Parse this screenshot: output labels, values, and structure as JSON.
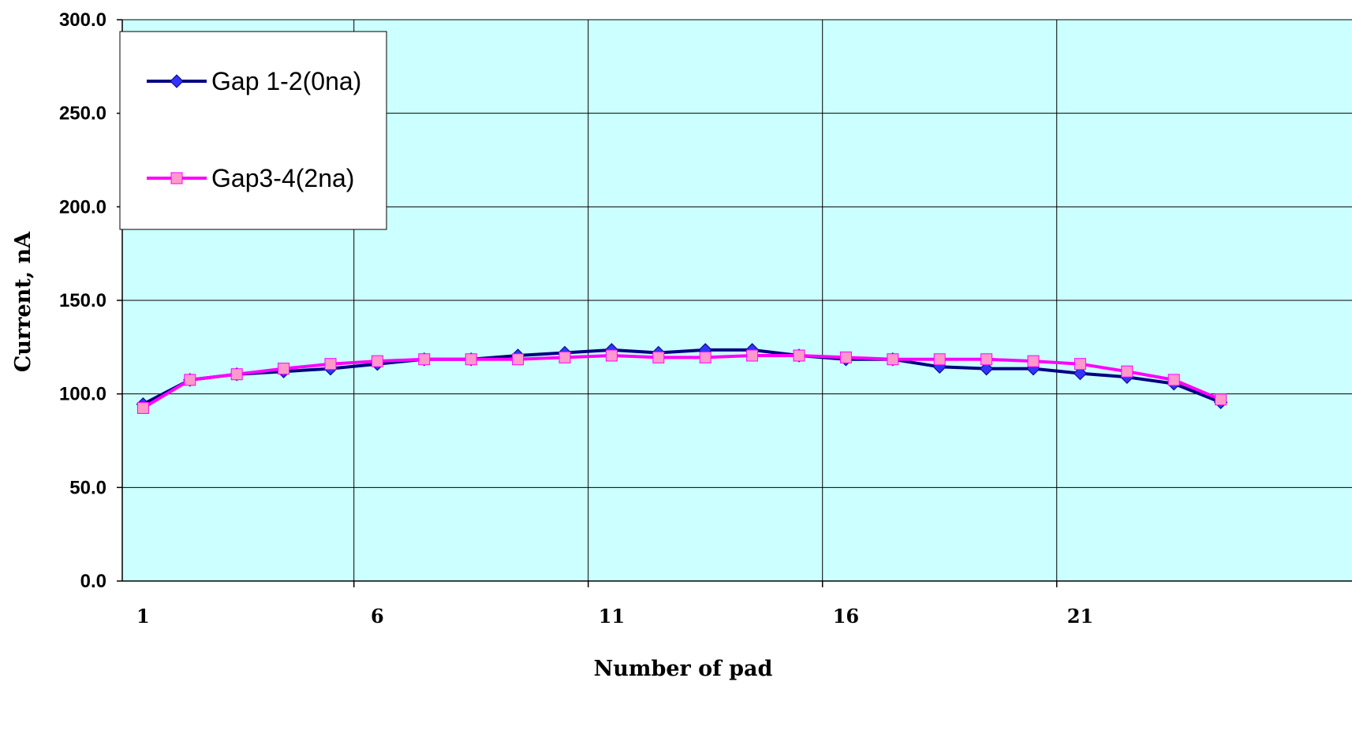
{
  "chart_data": {
    "type": "line",
    "title": "",
    "xlabel": "Number of pad",
    "ylabel": "Current, nA",
    "x": [
      1,
      2,
      3,
      4,
      5,
      6,
      7,
      8,
      9,
      10,
      11,
      12,
      13,
      14,
      15,
      16,
      17,
      18,
      19,
      20,
      21,
      22,
      23,
      24
    ],
    "x_tick_labels": [
      "1",
      "6",
      "11",
      "16",
      "21"
    ],
    "y_tick_labels": [
      "0.0",
      "50.0",
      "100.0",
      "150.0",
      "200.0",
      "250.0",
      "300.0"
    ],
    "ylim": [
      0,
      300
    ],
    "grid": true,
    "plot_background": "#ccffff",
    "legend_position": "top-left",
    "series": [
      {
        "name": "Gap 1-2(0na)",
        "color": "#000080",
        "marker_fill": "#3333ff",
        "marker": "diamond",
        "values": [
          94.5,
          107.5,
          110.5,
          112.0,
          113.5,
          116.0,
          118.5,
          118.5,
          120.5,
          122.0,
          123.5,
          122.0,
          123.5,
          123.5,
          120.5,
          118.5,
          118.5,
          114.5,
          113.5,
          113.5,
          111.0,
          109.0,
          105.5,
          95.5
        ]
      },
      {
        "name": "Gap3-4(2na)",
        "color": "#ff00ff",
        "marker_fill": "#ff99cc",
        "marker": "square",
        "values": [
          92.5,
          107.5,
          110.5,
          113.5,
          116.0,
          117.5,
          118.5,
          118.5,
          118.5,
          119.5,
          120.5,
          119.5,
          119.5,
          120.5,
          120.5,
          119.5,
          118.5,
          118.5,
          118.5,
          117.5,
          116.0,
          112.0,
          107.5,
          97.0
        ]
      }
    ]
  }
}
